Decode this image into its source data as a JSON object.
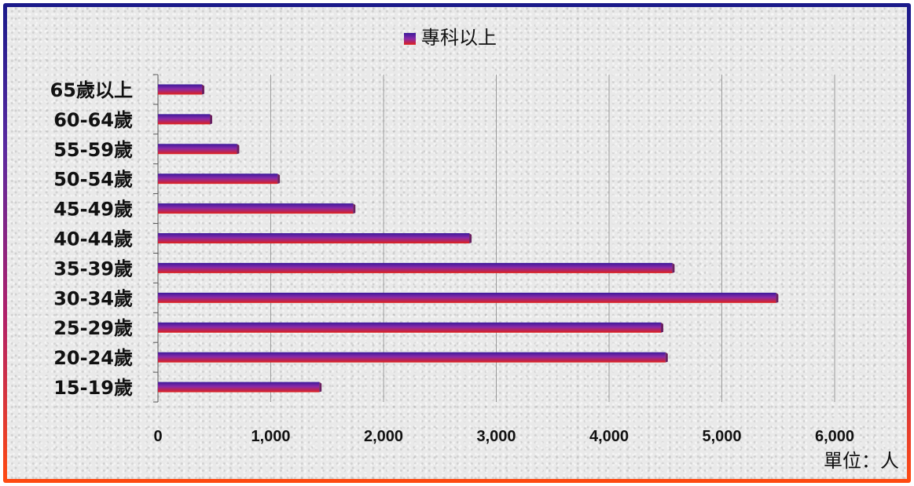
{
  "chart_data": {
    "type": "bar",
    "orientation": "horizontal",
    "categories": [
      "15-19歲",
      "20-24歲",
      "25-29歲",
      "30-34歲",
      "35-39歲",
      "40-44歲",
      "45-49歲",
      "50-54歲",
      "55-59歲",
      "60-64歲",
      "65歲以上"
    ],
    "series": [
      {
        "name": "專科以上",
        "values": [
          1430,
          4500,
          4460,
          5480,
          4560,
          2760,
          1730,
          1060,
          700,
          460,
          390
        ]
      }
    ],
    "xlim": [
      0,
      6000
    ],
    "xticks": [
      0,
      1000,
      2000,
      3000,
      4000,
      5000,
      6000
    ],
    "xtick_labels": [
      "0",
      "1,000",
      "2,000",
      "3,000",
      "4,000",
      "5,000",
      "6,000"
    ],
    "unit_label": "單位：人",
    "grid": "vertical",
    "legend_position": "top-center",
    "colors": {
      "bar_top": "#3b1a9a",
      "bar_mid": "#8a2aa8",
      "bar_bottom": "#e0201a",
      "bar_end": "#6a2060",
      "grid": "#9a9a9a",
      "frame_top": "#1a1a8a",
      "frame_bottom": "#ff4a10"
    }
  }
}
